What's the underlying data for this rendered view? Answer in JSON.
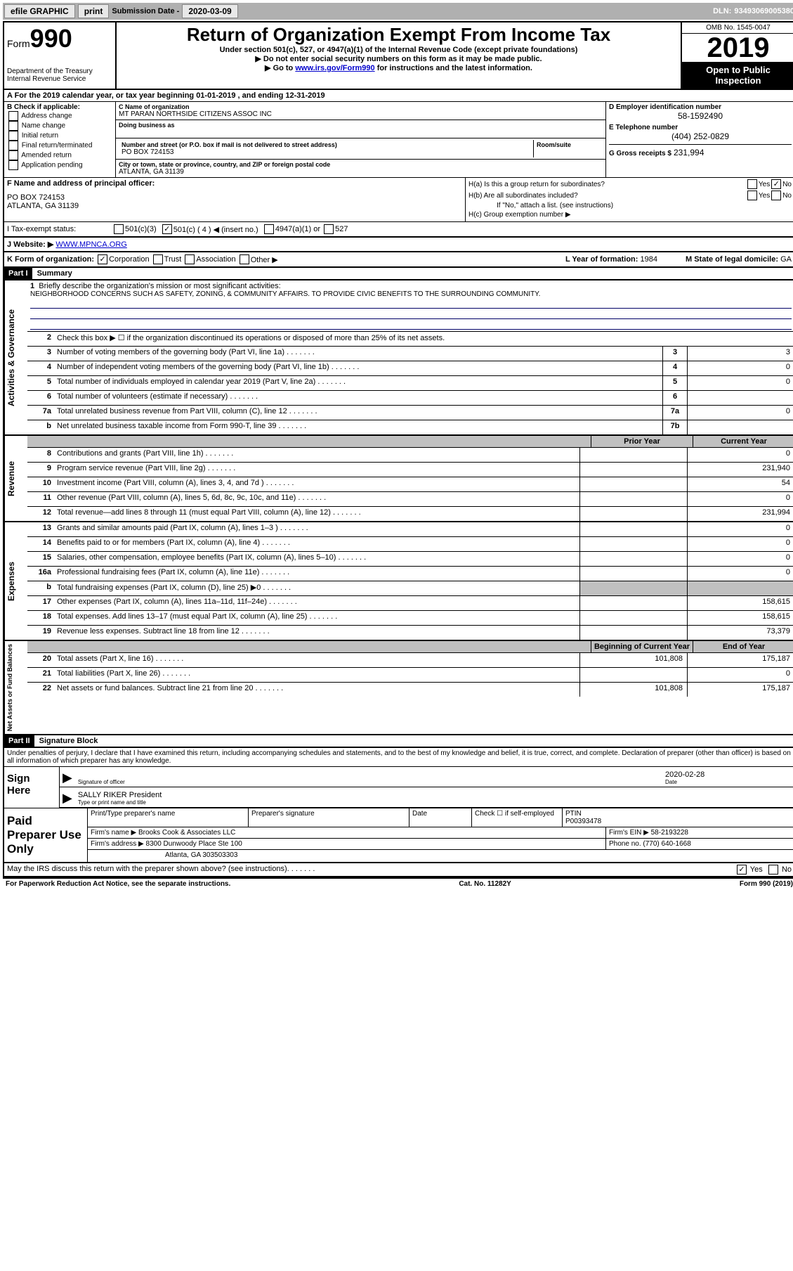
{
  "topbar": {
    "efile": "efile GRAPHIC",
    "print": "print",
    "sub_label": "Submission Date -",
    "sub_date": "2020-03-09",
    "dln_label": "DLN:",
    "dln": "93493069005380"
  },
  "header": {
    "form_label": "Form",
    "form_num": "990",
    "dept1": "Department of the Treasury",
    "dept2": "Internal Revenue Service",
    "title": "Return of Organization Exempt From Income Tax",
    "sub1": "Under section 501(c), 527, or 4947(a)(1) of the Internal Revenue Code (except private foundations)",
    "sub2": "▶ Do not enter social security numbers on this form as it may be made public.",
    "sub3_a": "▶ Go to ",
    "sub3_link": "www.irs.gov/Form990",
    "sub3_b": " for instructions and the latest information.",
    "omb": "OMB No. 1545-0047",
    "year": "2019",
    "open": "Open to Public Inspection"
  },
  "row_a": "A For the 2019 calendar year, or tax year beginning 01-01-2019    , and ending 12-31-2019",
  "col_b": {
    "label": "B Check if applicable:",
    "opts": [
      "Address change",
      "Name change",
      "Initial return",
      "Final return/terminated",
      "Amended return",
      "Application pending"
    ]
  },
  "col_c": {
    "name_label": "C Name of organization",
    "name": "MT PARAN NORTHSIDE CITIZENS ASSOC INC",
    "dba_label": "Doing business as",
    "addr_label": "Number and street (or P.O. box if mail is not delivered to street address)",
    "addr": "PO BOX 724153",
    "room_label": "Room/suite",
    "city_label": "City or town, state or province, country, and ZIP or foreign postal code",
    "city": "ATLANTA, GA  31139"
  },
  "col_d": {
    "ein_label": "D Employer identification number",
    "ein": "58-1592490",
    "tel_label": "E Telephone number",
    "tel": "(404) 252-0829",
    "gross_label": "G Gross receipts $",
    "gross": "231,994"
  },
  "col_f": {
    "label": "F  Name and address of principal officer:",
    "line1": "PO BOX 724153",
    "line2": "ATLANTA, GA  31139"
  },
  "col_h": {
    "ha": "H(a)  Is this a group return for subordinates?",
    "hb": "H(b)  Are all subordinates included?",
    "hb_note": "If \"No,\" attach a list. (see instructions)",
    "hc": "H(c)  Group exemption number ▶"
  },
  "row_i": {
    "label": "I    Tax-exempt status:",
    "o1": "501(c)(3)",
    "o2": "501(c) ( 4 ) ◀ (insert no.)",
    "o3": "4947(a)(1) or",
    "o4": "527"
  },
  "row_j": {
    "label": "J   Website: ▶",
    "val": "WWW.MPNCA.ORG"
  },
  "row_k": {
    "label": "K Form of organization:",
    "o1": "Corporation",
    "o2": "Trust",
    "o3": "Association",
    "o4": "Other ▶",
    "l_label": "L Year of formation:",
    "l_val": "1984",
    "m_label": "M State of legal domicile:",
    "m_val": "GA"
  },
  "part1": {
    "hdr": "Part I",
    "title": "Summary",
    "q1": "Briefly describe the organization's mission or most significant activities:",
    "mission": "NEIGHBORHOOD CONCERNS SUCH AS SAFETY, ZONING, & COMMUNITY AFFAIRS. TO PROVIDE CIVIC BENEFITS TO THE SURROUNDING COMMUNITY.",
    "q2": "Check this box ▶ ☐  if the organization discontinued its operations or disposed of more than 25% of its net assets."
  },
  "ag_label": "Activities & Governance",
  "ag_lines": [
    {
      "n": "3",
      "d": "Number of voting members of the governing body (Part VI, line 1a)",
      "box": "3",
      "v": "3"
    },
    {
      "n": "4",
      "d": "Number of independent voting members of the governing body (Part VI, line 1b)",
      "box": "4",
      "v": "0"
    },
    {
      "n": "5",
      "d": "Total number of individuals employed in calendar year 2019 (Part V, line 2a)",
      "box": "5",
      "v": "0"
    },
    {
      "n": "6",
      "d": "Total number of volunteers (estimate if necessary)",
      "box": "6",
      "v": ""
    },
    {
      "n": "7a",
      "d": "Total unrelated business revenue from Part VIII, column (C), line 12",
      "box": "7a",
      "v": "0"
    },
    {
      "n": "b",
      "d": "Net unrelated business taxable income from Form 990-T, line 39",
      "box": "7b",
      "v": ""
    }
  ],
  "rev_label": "Revenue",
  "py_hdr": "Prior Year",
  "cy_hdr": "Current Year",
  "rev_lines": [
    {
      "n": "8",
      "d": "Contributions and grants (Part VIII, line 1h)",
      "py": "",
      "cy": "0"
    },
    {
      "n": "9",
      "d": "Program service revenue (Part VIII, line 2g)",
      "py": "",
      "cy": "231,940"
    },
    {
      "n": "10",
      "d": "Investment income (Part VIII, column (A), lines 3, 4, and 7d )",
      "py": "",
      "cy": "54"
    },
    {
      "n": "11",
      "d": "Other revenue (Part VIII, column (A), lines 5, 6d, 8c, 9c, 10c, and 11e)",
      "py": "",
      "cy": "0"
    },
    {
      "n": "12",
      "d": "Total revenue—add lines 8 through 11 (must equal Part VIII, column (A), line 12)",
      "py": "",
      "cy": "231,994"
    }
  ],
  "exp_label": "Expenses",
  "exp_lines": [
    {
      "n": "13",
      "d": "Grants and similar amounts paid (Part IX, column (A), lines 1–3 )",
      "py": "",
      "cy": "0"
    },
    {
      "n": "14",
      "d": "Benefits paid to or for members (Part IX, column (A), line 4)",
      "py": "",
      "cy": "0"
    },
    {
      "n": "15",
      "d": "Salaries, other compensation, employee benefits (Part IX, column (A), lines 5–10)",
      "py": "",
      "cy": "0"
    },
    {
      "n": "16a",
      "d": "Professional fundraising fees (Part IX, column (A), line 11e)",
      "py": "",
      "cy": "0"
    },
    {
      "n": "b",
      "d": "Total fundraising expenses (Part IX, column (D), line 25) ▶0",
      "py": "shade",
      "cy": "shade"
    },
    {
      "n": "17",
      "d": "Other expenses (Part IX, column (A), lines 11a–11d, 11f–24e)",
      "py": "",
      "cy": "158,615"
    },
    {
      "n": "18",
      "d": "Total expenses. Add lines 13–17 (must equal Part IX, column (A), line 25)",
      "py": "",
      "cy": "158,615"
    },
    {
      "n": "19",
      "d": "Revenue less expenses. Subtract line 18 from line 12",
      "py": "",
      "cy": "73,379"
    }
  ],
  "na_label": "Net Assets or Fund Balances",
  "by_hdr": "Beginning of Current Year",
  "ey_hdr": "End of Year",
  "na_lines": [
    {
      "n": "20",
      "d": "Total assets (Part X, line 16)",
      "py": "101,808",
      "cy": "175,187"
    },
    {
      "n": "21",
      "d": "Total liabilities (Part X, line 26)",
      "py": "",
      "cy": "0"
    },
    {
      "n": "22",
      "d": "Net assets or fund balances. Subtract line 21 from line 20",
      "py": "101,808",
      "cy": "175,187"
    }
  ],
  "part2": {
    "hdr": "Part II",
    "title": "Signature Block",
    "declare": "Under penalties of perjury, I declare that I have examined this return, including accompanying schedules and statements, and to the best of my knowledge and belief, it is true, correct, and complete. Declaration of preparer (other than officer) is based on all information of which preparer has any knowledge."
  },
  "sign": {
    "left": "Sign Here",
    "sig_lab": "Signature of officer",
    "date_lab": "Date",
    "date": "2020-02-28",
    "name": "SALLY RIKER  President",
    "name_lab": "Type or print name and title"
  },
  "prep": {
    "left": "Paid Preparer Use Only",
    "r1c1": "Print/Type preparer's name",
    "r1c2": "Preparer's signature",
    "r1c3": "Date",
    "r1c4a": "Check ☐ if self-employed",
    "r1c5a": "PTIN",
    "r1c5b": "P00393478",
    "r2a": "Firm's name    ▶",
    "r2b": "Brooks Cook & Associates LLC",
    "r2c": "Firm's EIN ▶",
    "r2d": "58-2193228",
    "r3a": "Firm's address ▶",
    "r3b": "8300 Dunwoody Place Ste 100",
    "r3c": "Phone no.",
    "r3d": "(770) 640-1668",
    "r4": "Atlanta, GA  303503303"
  },
  "bottom": {
    "q": "May the IRS discuss this return with the preparer shown above? (see instructions)",
    "yes": "Yes",
    "no": "No"
  },
  "footer": {
    "left": "For Paperwork Reduction Act Notice, see the separate instructions.",
    "mid": "Cat. No. 11282Y",
    "right": "Form 990 (2019)"
  }
}
